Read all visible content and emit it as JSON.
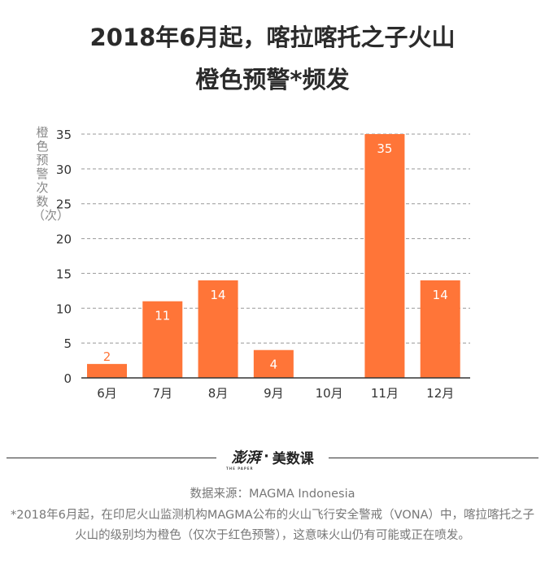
{
  "header": {
    "title_line1": "2018年6月起，喀拉喀托之子火山",
    "title_line2": "橙色预警*频发"
  },
  "chart_data": {
    "type": "bar",
    "ylabel": "橙色预警次数（次）",
    "categories": [
      "6月",
      "7月",
      "8月",
      "9月",
      "10月",
      "11月",
      "12月"
    ],
    "values": [
      2,
      11,
      14,
      4,
      0,
      35,
      14
    ],
    "data_labels": [
      "2",
      "11",
      "14",
      "4",
      "",
      "35",
      "14"
    ],
    "ylim": [
      0,
      35
    ],
    "yticks": [
      0,
      5,
      10,
      15,
      20,
      25,
      30,
      35
    ],
    "grid": true,
    "bar_color": "#ff7538",
    "label_color_inside": "#ffffff",
    "label_color_outside": "#ff7538"
  },
  "footer": {
    "logo_mark": "澎湃",
    "logo_sep": "·",
    "logo_text": "美数课",
    "logo_sub": "THE PAPER",
    "source": "数据来源：MAGMA Indonesia",
    "note": "*2018年6月起，在印尼火山监测机构MAGMA公布的火山飞行安全警戒（VONA）中，喀拉喀托之子火山的级别均为橙色（仅次于红色预警），这意味火山仍有可能或正在喷发。"
  }
}
